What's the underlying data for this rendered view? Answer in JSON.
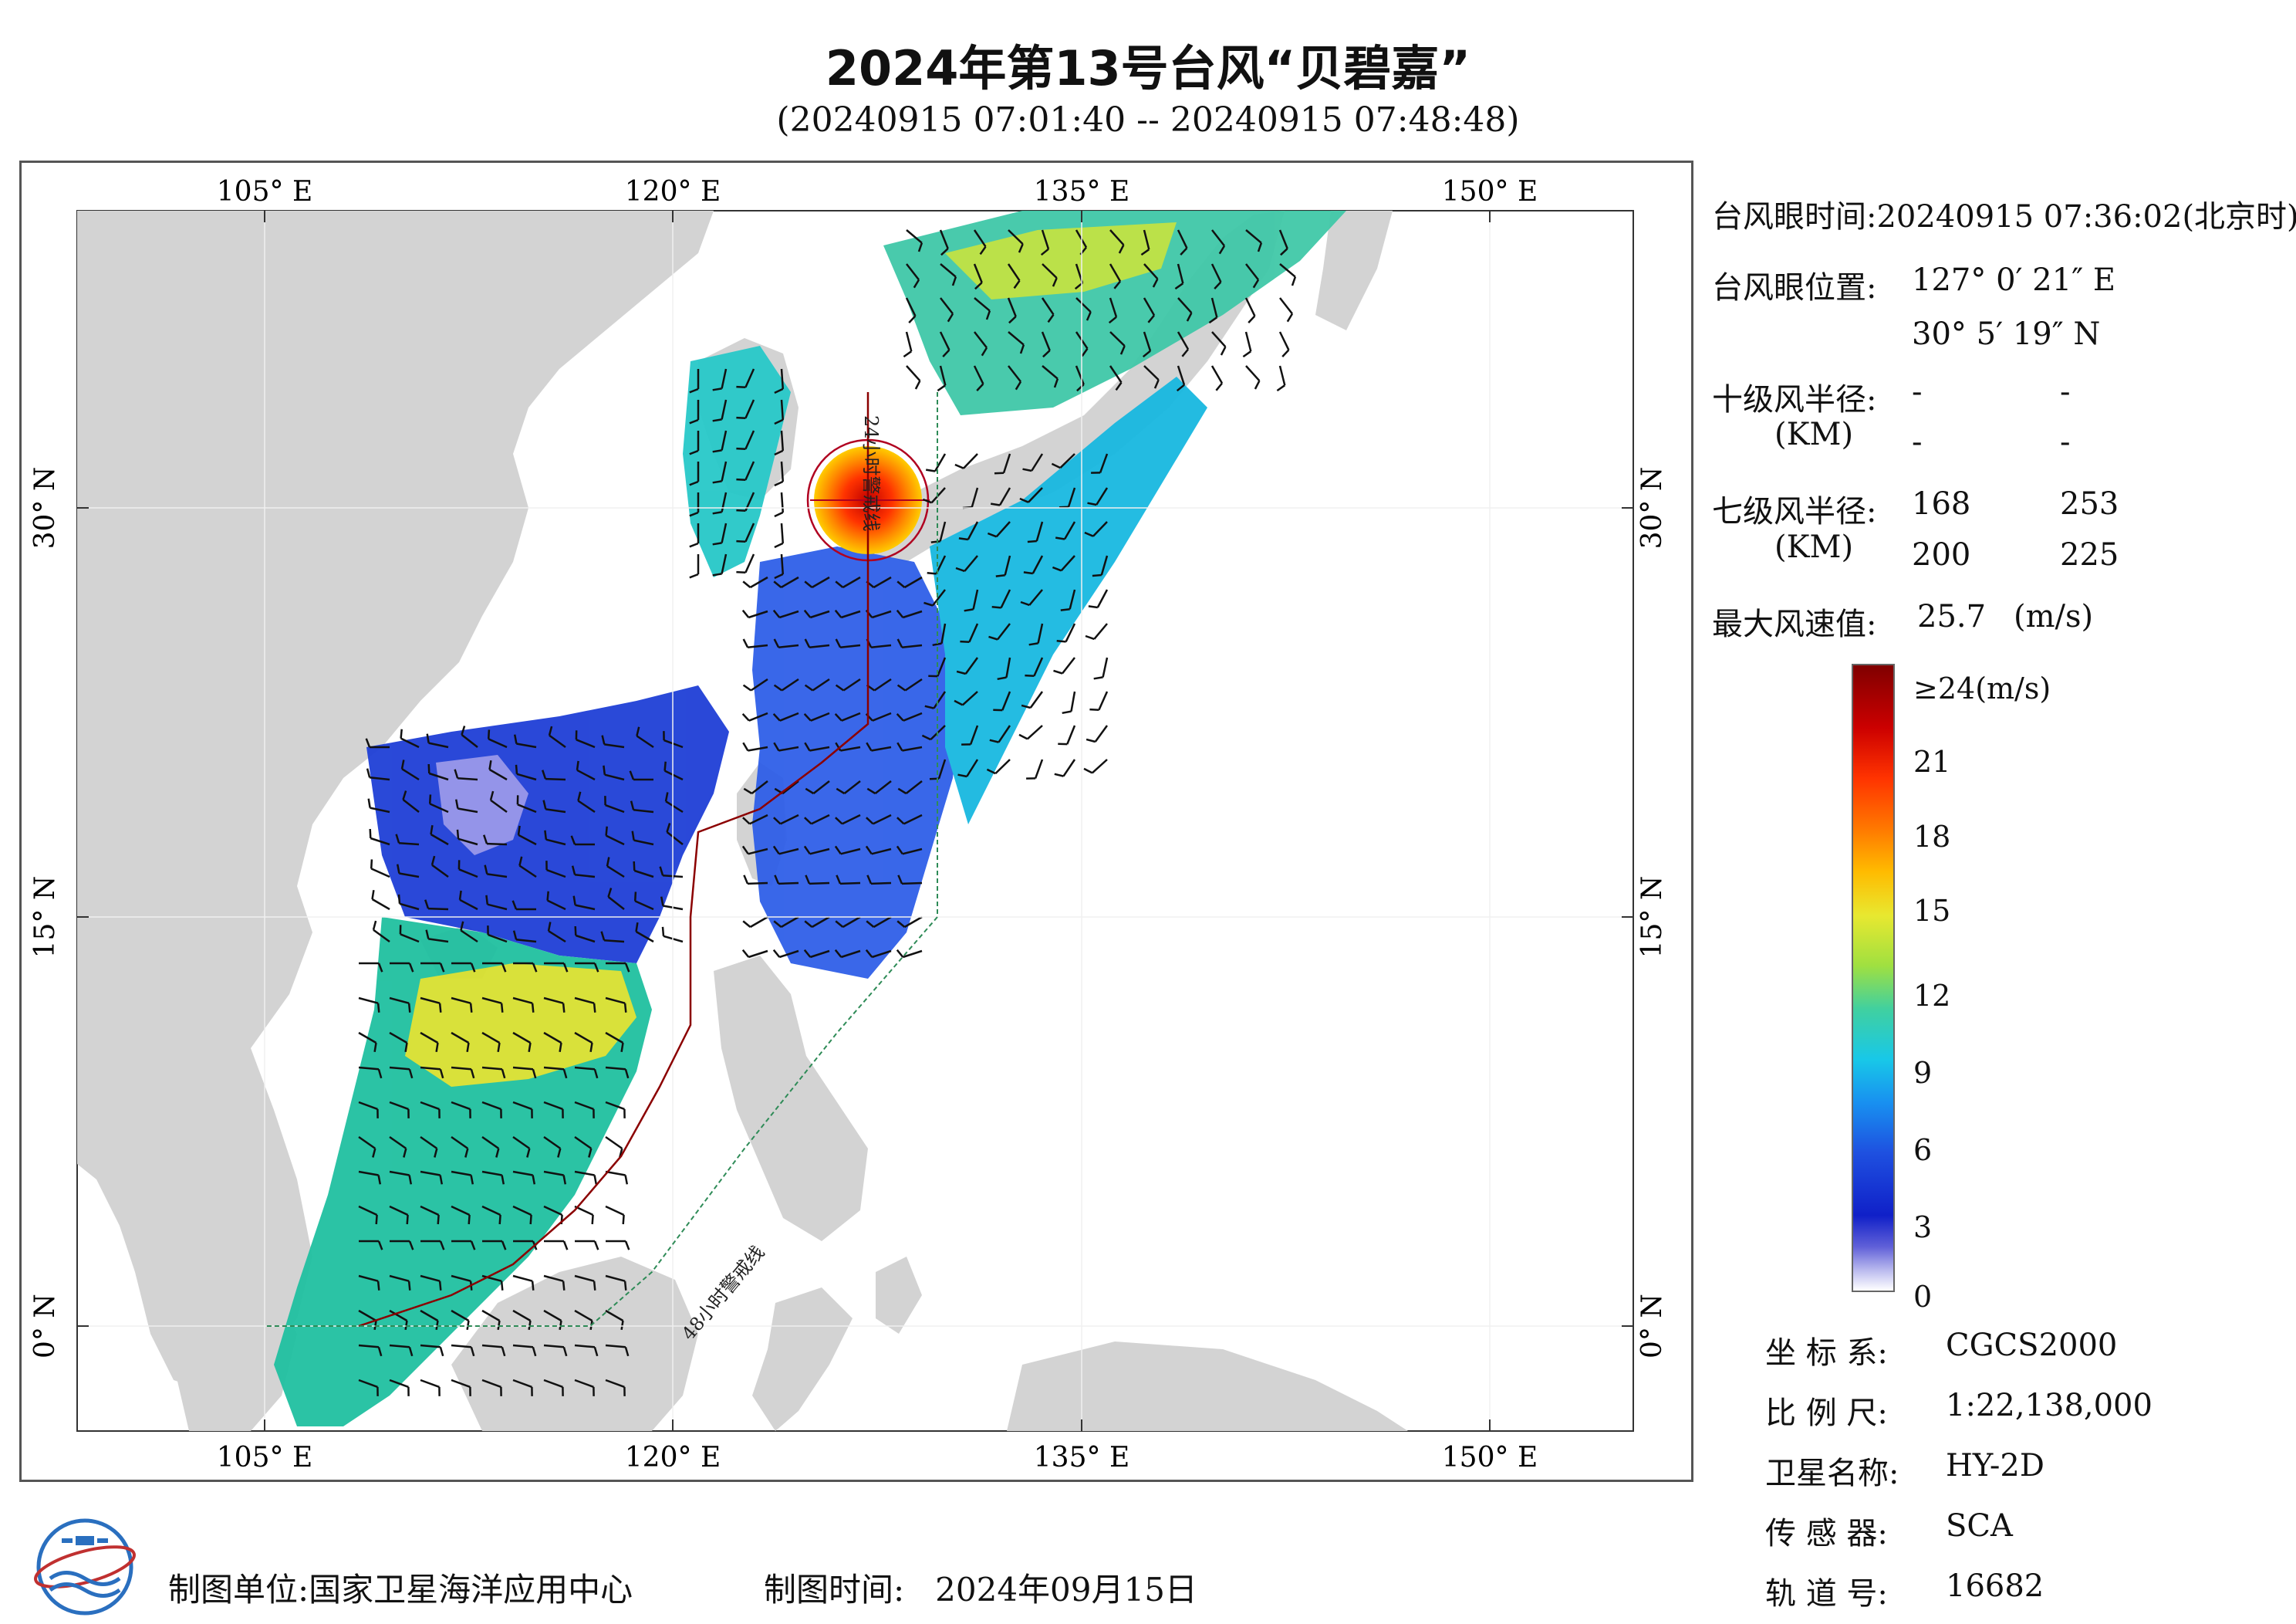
{
  "header": {
    "title": "2024年第13号台风“贝碧嘉”",
    "subtitle": "(20240915 07:01:40 -- 20240915 07:48:48)"
  },
  "map": {
    "lon_labels": [
      "105° E",
      "120° E",
      "135° E",
      "150° E"
    ],
    "lat_labels": [
      "30° N",
      "15° N",
      "0° N"
    ],
    "warning_24h": "24小时警戒线",
    "warning_48h": "48小时警戒线",
    "colors": {
      "land": "#d3d3d3",
      "ocean": "#ffffff",
      "line_24h": "#8b0000",
      "line_48h": "#2e8b57"
    }
  },
  "info": {
    "eye_time_label": "台风眼时间:",
    "eye_time_value": "20240915 07:36:02(北京时)",
    "eye_pos_label": "台风眼位置:",
    "eye_lon": "127° 0′ 21″ E",
    "eye_lat": "30° 5′ 19″ N",
    "r10_label": "十级风半径:",
    "r10_unit": "(KM)",
    "r10_values": [
      "-",
      "-",
      "-",
      "-"
    ],
    "r7_label": "七级风半径:",
    "r7_unit": "(KM)",
    "r7_values": [
      "168",
      "253",
      "200",
      "225"
    ],
    "max_wind_label": "最大风速值:",
    "max_wind_value": "25.7",
    "max_wind_unit": "(m/s)"
  },
  "colorbar": {
    "top_label": "≥24(m/s)",
    "ticks": [
      "21",
      "18",
      "15",
      "12",
      "9",
      "6",
      "3",
      "0"
    ]
  },
  "meta": {
    "crs_label": "坐 标 系:",
    "crs_value": "CGCS2000",
    "scale_label": "比 例 尺:",
    "scale_value": "1:22,138,000",
    "sat_label": "卫星名称:",
    "sat_value": "HY-2D",
    "sensor_label": "传 感 器:",
    "sensor_value": "SCA",
    "orbit_label": "轨 道 号:",
    "orbit_value": "16682"
  },
  "footer": {
    "unit_label": "制图单位:",
    "unit_value": "国家卫星海洋应用中心",
    "time_label": "制图时间:",
    "time_value": "2024年09月15日"
  }
}
